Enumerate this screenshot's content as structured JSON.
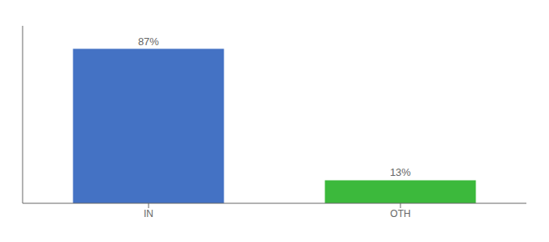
{
  "chart_data": {
    "type": "bar",
    "categories": [
      "IN",
      "OTH"
    ],
    "values": [
      87,
      13
    ],
    "value_labels": [
      "87%",
      "13%"
    ],
    "data_labels": true,
    "colors": [
      "#4472c4",
      "#3cb93c"
    ],
    "ylim": [
      0,
      100
    ],
    "grid": false,
    "tick_labels": "x"
  }
}
